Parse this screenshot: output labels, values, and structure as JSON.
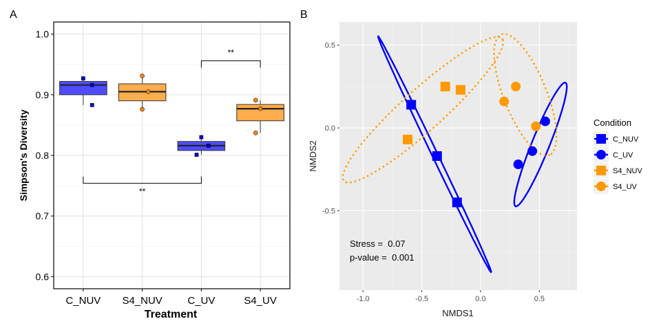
{
  "chart_data": [
    {
      "panel_label": "A",
      "type": "box",
      "xlabel": "Treatment",
      "ylabel": "Simpson's Diversity",
      "ylim": [
        0.58,
        1.02
      ],
      "yticks": [
        "0.6",
        "0.7",
        "0.8",
        "0.9",
        "1.0"
      ],
      "ytick_values": [
        0.6,
        0.7,
        0.8,
        0.9,
        1.0
      ],
      "categories": [
        "C_NUV",
        "S4_NUV",
        "C_UV",
        "S4_UV"
      ],
      "colors": [
        "#4d4dff",
        "#ffad4d",
        "#4d4dff",
        "#ffad4d"
      ],
      "point_colors": [
        "#0000cd",
        "#ff8c00",
        "#0000cd",
        "#ff8c00"
      ],
      "point_shapes": [
        "square",
        "circle",
        "square",
        "circle"
      ],
      "boxes": [
        {
          "q1": 0.9,
          "median": 0.916,
          "q3": 0.922,
          "whisker_low": 0.883,
          "whisker_high": 0.927
        },
        {
          "q1": 0.89,
          "median": 0.905,
          "q3": 0.918,
          "whisker_low": 0.876,
          "whisker_high": 0.931
        },
        {
          "q1": 0.808,
          "median": 0.816,
          "q3": 0.823,
          "whisker_low": 0.801,
          "whisker_high": 0.83
        },
        {
          "q1": 0.857,
          "median": 0.877,
          "q3": 0.884,
          "whisker_low": 0.837,
          "whisker_high": 0.891
        }
      ],
      "means": [
        0.916,
        0.906,
        0.816,
        0.872
      ],
      "points": [
        [
          0.927,
          0.916,
          0.883
        ],
        [
          0.931,
          0.905,
          0.876
        ],
        [
          0.83,
          0.816,
          0.801
        ],
        [
          0.891,
          0.877,
          0.837
        ]
      ],
      "jitter": [
        [
          0.0,
          0.15,
          0.15
        ],
        [
          0.0,
          0.1,
          0.0
        ],
        [
          0.0,
          0.12,
          -0.08
        ],
        [
          -0.08,
          0.0,
          -0.08
        ]
      ],
      "brackets": [
        {
          "from": "C_UV",
          "to": "S4_UV",
          "y": 0.956,
          "label": "**",
          "side": "top"
        },
        {
          "from": "C_NUV",
          "to": "C_UV",
          "y": 0.754,
          "label": "**",
          "side": "bottom"
        }
      ],
      "grid": true
    },
    {
      "panel_label": "B",
      "type": "scatter",
      "xlabel": "NMDS1",
      "ylabel": "NMDS2",
      "xlim": [
        -1.2,
        0.82
      ],
      "ylim": [
        -0.98,
        0.64
      ],
      "xticks": [
        "-1.0",
        "-0.5",
        "0.0",
        "0.5"
      ],
      "xtick_values": [
        -1.0,
        -0.5,
        0.0,
        0.5
      ],
      "yticks": [
        "0.5",
        "0.0",
        "-0.5"
      ],
      "ytick_values": [
        0.5,
        0.0,
        -0.5
      ],
      "legend_title": "Condition",
      "legend_position": "right",
      "series": [
        {
          "name": "C_NUV",
          "color": "#0000ff",
          "shape": "square",
          "points": [
            [
              -0.59,
              0.14
            ],
            [
              -0.37,
              -0.17
            ],
            [
              -0.2,
              -0.45
            ]
          ]
        },
        {
          "name": "C_UV",
          "color": "#0000ff",
          "shape": "circle",
          "points": [
            [
              0.55,
              0.04
            ],
            [
              0.44,
              -0.14
            ],
            [
              0.32,
              -0.22
            ]
          ]
        },
        {
          "name": "S4_NUV",
          "color": "#ff9900",
          "shape": "square",
          "points": [
            [
              -0.62,
              -0.07
            ],
            [
              -0.3,
              0.25
            ],
            [
              -0.17,
              0.23
            ]
          ]
        },
        {
          "name": "S4_UV",
          "color": "#ff9900",
          "shape": "circle",
          "points": [
            [
              0.3,
              0.25
            ],
            [
              0.2,
              0.16
            ],
            [
              0.47,
              0.01
            ]
          ]
        }
      ],
      "ellipses": [
        {
          "series": "C_NUV",
          "style": "solid",
          "cx": -0.39,
          "cy": -0.16,
          "a": 0.86,
          "b": 0.022,
          "angle_deg": -56
        },
        {
          "series": "C_UV",
          "style": "solid",
          "cx": 0.51,
          "cy": -0.1,
          "a": 0.43,
          "b": 0.07,
          "angle_deg": 60
        },
        {
          "series": "S4_NUV",
          "style": "dotted",
          "cx": -0.49,
          "cy": 0.11,
          "a": 0.8,
          "b": 0.14,
          "angle_deg": 32
        },
        {
          "series": "S4_UV",
          "style": "dotted",
          "cx": 0.38,
          "cy": 0.2,
          "a": 0.42,
          "b": 0.17,
          "angle_deg": -58
        }
      ],
      "annotations": [
        "Stress =  0.07",
        "p-value =  0.001"
      ],
      "grid": true
    }
  ]
}
